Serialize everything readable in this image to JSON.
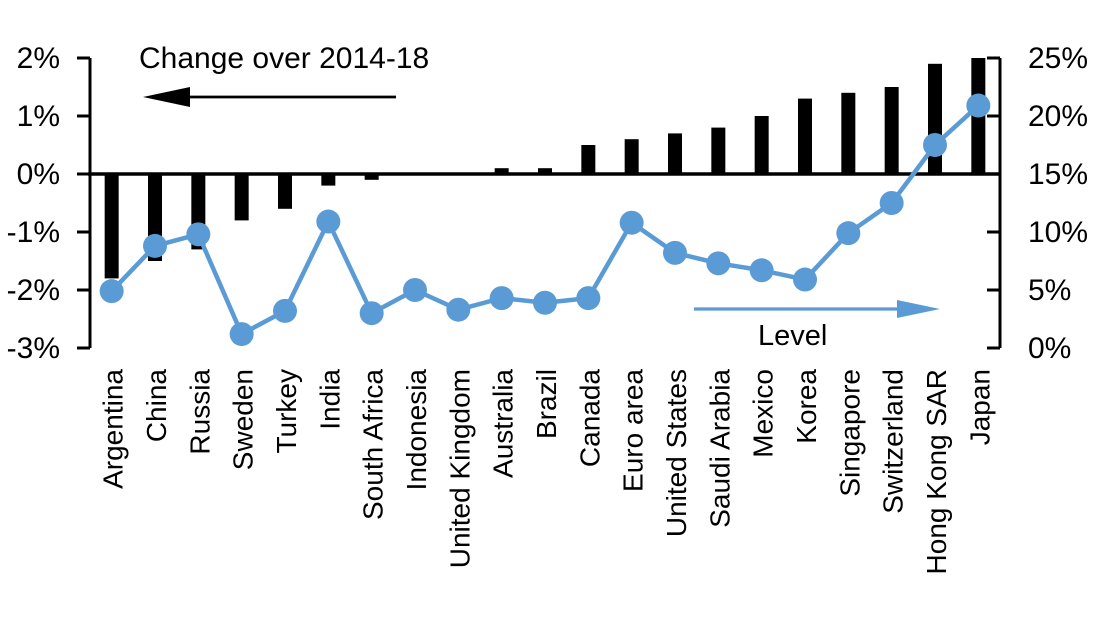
{
  "chart_data": {
    "type": "bar+line dual-axis combo",
    "categories": [
      "Argentina",
      "China",
      "Russia",
      "Sweden",
      "Turkey",
      "India",
      "South Africa",
      "Indonesia",
      "United Kingdom",
      "Australia",
      "Brazil",
      "Canada",
      "Euro area",
      "United States",
      "Saudi Arabia",
      "Mexico",
      "Korea",
      "Singapore",
      "Switzerland",
      "Hong Kong SAR",
      "Japan"
    ],
    "series": [
      {
        "name": "Change over 2014-18",
        "type": "bar",
        "axis": "left",
        "color": "#000000",
        "values": [
          -1.8,
          -1.5,
          -1.3,
          -0.8,
          -0.6,
          -0.2,
          -0.1,
          0,
          0,
          0.1,
          0.1,
          0.5,
          0.6,
          0.7,
          0.8,
          1.0,
          1.3,
          1.4,
          1.5,
          1.9,
          2.0
        ]
      },
      {
        "name": "Level",
        "type": "line",
        "axis": "right",
        "color": "#5B9BD5",
        "values": [
          4.9,
          8.8,
          9.8,
          1.2,
          3.2,
          10.9,
          3.0,
          5.0,
          3.3,
          4.3,
          3.9,
          4.3,
          10.8,
          8.2,
          7.3,
          6.7,
          5.9,
          9.9,
          12.5,
          17.5,
          20.9
        ]
      }
    ],
    "left_axis": {
      "min": -3,
      "max": 2,
      "ticks": [
        {
          "label": "2%",
          "value": 2
        },
        {
          "label": "1%",
          "value": 1
        },
        {
          "label": "0%",
          "value": 0
        },
        {
          "label": "-1%",
          "value": -1
        },
        {
          "label": "-2%",
          "value": -2
        },
        {
          "label": "-3%",
          "value": -3
        }
      ]
    },
    "right_axis": {
      "min": 0,
      "max": 25,
      "ticks": [
        {
          "label": "25%",
          "value": 25
        },
        {
          "label": "20%",
          "value": 20
        },
        {
          "label": "15%",
          "value": 15
        },
        {
          "label": "10%",
          "value": 10
        },
        {
          "label": "5%",
          "value": 5
        },
        {
          "label": "0%",
          "value": 0
        }
      ]
    },
    "annotations": {
      "left": {
        "text": "Change over 2014-18",
        "arrow_direction": "left",
        "arrow_color": "#000000"
      },
      "right": {
        "text": "Level",
        "arrow_direction": "right",
        "arrow_color": "#5B9BD5"
      }
    },
    "grid": "off",
    "legend": "none"
  }
}
